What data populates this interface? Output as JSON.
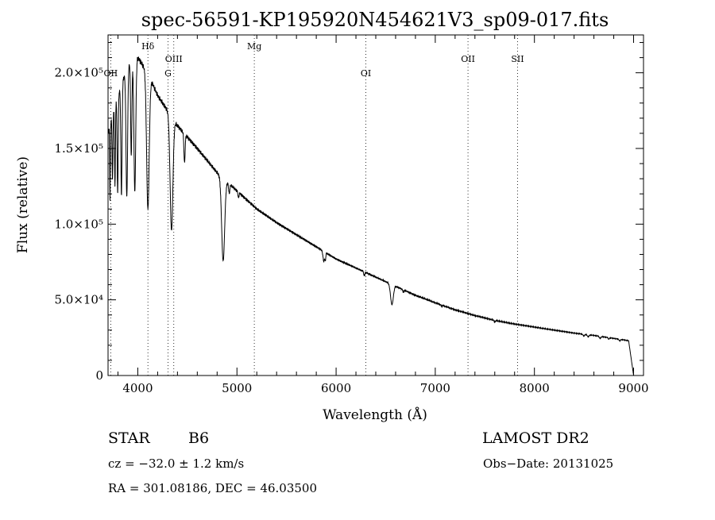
{
  "chart_data": {
    "type": "line",
    "title": "spec-56591-KP195920N454621V3_sp09-017.fits",
    "xlabel": "Wavelength (Å)",
    "ylabel": "Flux (relative)",
    "xlim": [
      3700,
      9100
    ],
    "ylim": [
      0,
      225000
    ],
    "x_ticks": [
      {
        "value": 4000,
        "label": "4000"
      },
      {
        "value": 5000,
        "label": "5000"
      },
      {
        "value": 6000,
        "label": "6000"
      },
      {
        "value": 7000,
        "label": "7000"
      },
      {
        "value": 8000,
        "label": "8000"
      },
      {
        "value": 9000,
        "label": "9000"
      }
    ],
    "y_ticks": [
      {
        "value": 0,
        "label": "0"
      },
      {
        "value": 50000,
        "label": "5.0×10⁴"
      },
      {
        "value": 100000,
        "label": "1.0×10⁵"
      },
      {
        "value": 150000,
        "label": "1.5×10⁵"
      },
      {
        "value": 200000,
        "label": "2.0×10⁵"
      }
    ],
    "spectral_lines": [
      {
        "label": "OII",
        "wavelength": 3727,
        "tier": 3
      },
      {
        "label": "Hδ",
        "wavelength": 4102,
        "tier": 1
      },
      {
        "label": "G",
        "wavelength": 4305,
        "tier": 3
      },
      {
        "label": "OIII",
        "wavelength": 4363,
        "tier": 2
      },
      {
        "label": "Mg",
        "wavelength": 5175,
        "tier": 1
      },
      {
        "label": "OI",
        "wavelength": 6300,
        "tier": 3
      },
      {
        "label": "OII",
        "wavelength": 7330,
        "tier": 2
      },
      {
        "label": "SII",
        "wavelength": 7830,
        "tier": 2
      }
    ],
    "continuum": [
      [
        3700,
        160000
      ],
      [
        3800,
        185000
      ],
      [
        3900,
        205000
      ],
      [
        4000,
        210000
      ],
      [
        4100,
        200000
      ],
      [
        4200,
        185000
      ],
      [
        4300,
        175000
      ],
      [
        4400,
        165000
      ],
      [
        4600,
        150000
      ],
      [
        4800,
        134000
      ],
      [
        5000,
        122000
      ],
      [
        5200,
        110000
      ],
      [
        5400,
        101000
      ],
      [
        5600,
        93000
      ],
      [
        5800,
        85000
      ],
      [
        6000,
        77000
      ],
      [
        6200,
        71000
      ],
      [
        6400,
        65000
      ],
      [
        6600,
        59000
      ],
      [
        6800,
        53000
      ],
      [
        7000,
        48000
      ],
      [
        7200,
        43500
      ],
      [
        7400,
        39500
      ],
      [
        7600,
        36500
      ],
      [
        7800,
        34000
      ],
      [
        8000,
        32000
      ],
      [
        8200,
        30000
      ],
      [
        8400,
        28000
      ],
      [
        8600,
        26500
      ],
      [
        8800,
        24500
      ],
      [
        8950,
        23000
      ],
      [
        9000,
        0
      ]
    ],
    "absorption_features": [
      [
        3720,
        0.3,
        3
      ],
      [
        3745,
        0.25,
        4
      ],
      [
        3770,
        0.3,
        4
      ],
      [
        3797,
        0.35,
        5
      ],
      [
        3835,
        0.38,
        6
      ],
      [
        3889,
        0.42,
        8
      ],
      [
        3934,
        0.3,
        6
      ],
      [
        3970,
        0.42,
        9
      ],
      [
        4102,
        0.45,
        13
      ],
      [
        4340,
        0.44,
        14
      ],
      [
        4471,
        0.12,
        6
      ],
      [
        4861,
        0.42,
        15
      ],
      [
        4922,
        0.05,
        6
      ],
      [
        5015,
        0.03,
        5
      ],
      [
        5876,
        0.08,
        8
      ],
      [
        5892,
        0.06,
        4
      ],
      [
        6284,
        0.04,
        5
      ],
      [
        6563,
        0.22,
        14
      ],
      [
        6678,
        0.03,
        5
      ],
      [
        7065,
        0.02,
        5
      ],
      [
        7600,
        0.03,
        6
      ],
      [
        8498,
        0.04,
        8
      ],
      [
        8542,
        0.05,
        8
      ],
      [
        8662,
        0.05,
        8
      ],
      [
        8750,
        0.04,
        6
      ],
      [
        8860,
        0.04,
        7
      ]
    ]
  },
  "info": {
    "object_type": "STAR",
    "subclass": "B6",
    "survey": "LAMOST DR2",
    "redshift": "cz = −32.0 ± 1.2 km/s",
    "obs_date": "Obs−Date: 20131025",
    "coords": "RA = 301.08186, DEC =  46.03500"
  }
}
